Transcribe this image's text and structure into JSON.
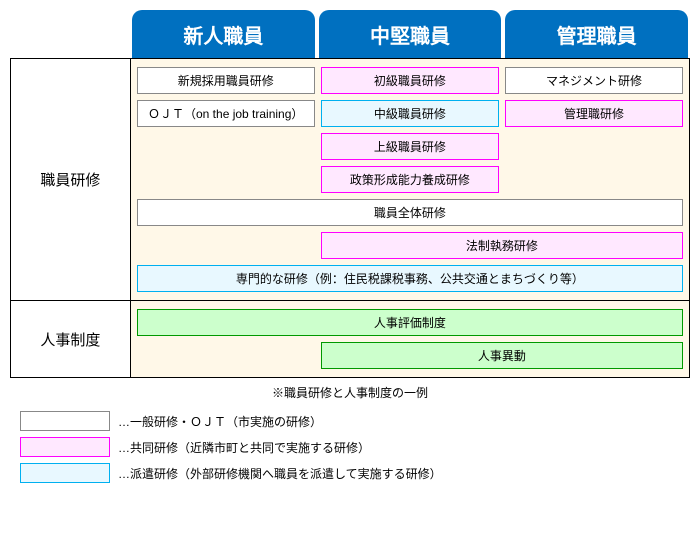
{
  "colors": {
    "header_bg": "#0070c0",
    "header_text": "#ffffff",
    "body_bg": "#fff8e8",
    "gray_border": "#888888",
    "magenta_border": "#ff00ff",
    "magenta_fill": "#ffe8ff",
    "cyan_border": "#00b0f0",
    "cyan_fill": "#e8f8ff",
    "green_border": "#009900",
    "green_fill": "#ccffcc",
    "page_bg": "#ffffff",
    "text": "#000000"
  },
  "headers": [
    "新人職員",
    "中堅職員",
    "管理職員"
  ],
  "rows": {
    "training": {
      "label": "職員研修",
      "col_new": [
        {
          "text": "新規採用職員研修",
          "style": "gray"
        },
        {
          "text": "ＯＪＴ（on the job training）",
          "style": "gray"
        }
      ],
      "col_mid": [
        {
          "text": "初級職員研修",
          "style": "magenta"
        },
        {
          "text": "中級職員研修",
          "style": "cyan"
        },
        {
          "text": "上級職員研修",
          "style": "magenta"
        },
        {
          "text": "政策形成能力養成研修",
          "style": "magenta"
        }
      ],
      "col_mgr": [
        {
          "text": "マネジメント研修",
          "style": "gray"
        },
        {
          "text": "管理職研修",
          "style": "magenta"
        }
      ],
      "full_rows": [
        {
          "text": "職員全体研修",
          "style": "gray",
          "span": "full"
        },
        {
          "text": "法制執務研修",
          "style": "magenta",
          "span": "right2"
        },
        {
          "text": "専門的な研修（例：住民税課税事務、公共交通とまちづくり等）",
          "style": "cyan",
          "span": "full"
        }
      ]
    },
    "hr": {
      "label": "人事制度",
      "items": [
        {
          "text": "人事評価制度",
          "style": "green",
          "span": "full"
        },
        {
          "text": "人事異動",
          "style": "green",
          "span": "right2"
        }
      ]
    }
  },
  "footnote": "※職員研修と人事制度の一例",
  "legend": [
    {
      "swatch": "gray",
      "text": "…一般研修・ＯＪＴ（市実施の研修）"
    },
    {
      "swatch": "magenta",
      "text": "…共同研修（近隣市町と共同で実施する研修）"
    },
    {
      "swatch": "cyan",
      "text": "…派遣研修（外部研修機関へ職員を派遣して実施する研修）"
    }
  ]
}
